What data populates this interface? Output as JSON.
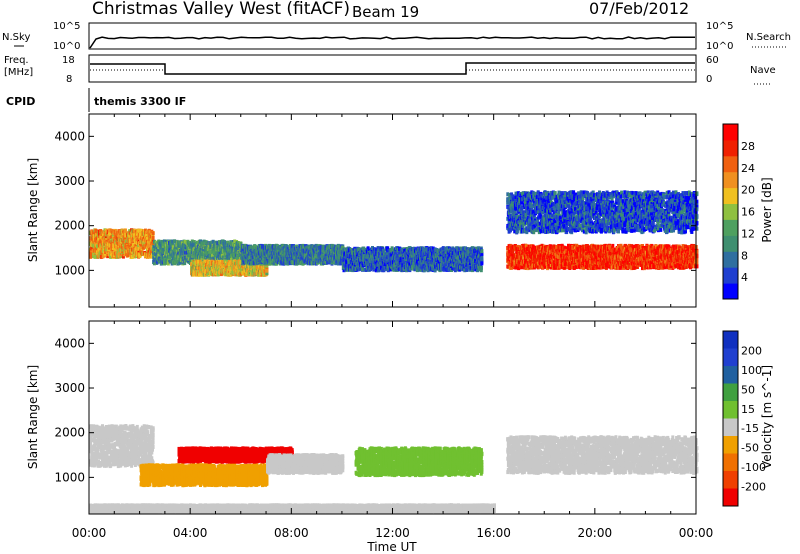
{
  "header": {
    "station": "Christmas Valley West (fitACF)",
    "beam": "Beam 19",
    "date": "07/Feb/2012",
    "cpid": "themis 3300 IF"
  },
  "panels": {
    "nsky_label": "N.Sky",
    "nsearch_label": "N.Search",
    "freq_label_1": "Freq.",
    "freq_label_2": "[MHz]",
    "nave_label": "Nave",
    "cpid_label": "CPID",
    "nsky_ticks": [
      "10^5",
      "10^0"
    ],
    "nsearch_ticks": [
      "10^5",
      "10^0"
    ],
    "freq_ticks": [
      "18",
      "8"
    ],
    "nave_ticks": [
      "60",
      "0"
    ]
  },
  "colors": {
    "power_scale": [
      "#0000ff",
      "#1f3fd0",
      "#2f6fa0",
      "#3f8f70",
      "#4fa060",
      "#8fc040",
      "#f0c020",
      "#f09020",
      "#f06010",
      "#f02000",
      "#ff0000"
    ],
    "velocity_scale": [
      "#1030c0",
      "#2040d0",
      "#2060a0",
      "#40a040",
      "#70c030",
      "#c8c8c8",
      "#f0a000",
      "#f07000",
      "#f04000",
      "#f00000"
    ],
    "ground_scatter": "#c8c8c8"
  },
  "chart_data": [
    {
      "type": "heatmap",
      "title": "",
      "xlabel": "Time UT",
      "ylabel": "Slant Range [km]",
      "x_ticks": [
        "00:00",
        "04:00",
        "08:00",
        "12:00",
        "16:00",
        "20:00",
        "00:00"
      ],
      "xlim_hours": [
        0,
        24
      ],
      "y_ticks": [
        "1000",
        "2000",
        "3000",
        "4000"
      ],
      "ylim": [
        180,
        4500
      ],
      "colorbar": {
        "label": "Power [dB]",
        "ticks": [
          "4",
          "8",
          "12",
          "16",
          "20",
          "24",
          "28"
        ],
        "range": [
          0,
          30
        ]
      },
      "regions": [
        {
          "t0": 0.0,
          "t1": 2.5,
          "r_center": 1600,
          "r_width": 600,
          "value": 20
        },
        {
          "t0": 2.5,
          "t1": 6.0,
          "r_center": 1400,
          "r_width": 500,
          "value": 10
        },
        {
          "t0": 4.0,
          "t1": 7.0,
          "r_center": 1050,
          "r_width": 300,
          "value": 18
        },
        {
          "t0": 6.0,
          "t1": 10.0,
          "r_center": 1350,
          "r_width": 400,
          "value": 8
        },
        {
          "t0": 10.0,
          "t1": 15.5,
          "r_center": 1250,
          "r_width": 500,
          "value": 6
        },
        {
          "t0": 16.5,
          "t1": 24.0,
          "r_center": 1300,
          "r_width": 500,
          "value": 26
        },
        {
          "t0": 16.5,
          "t1": 24.0,
          "r_center": 2300,
          "r_width": 900,
          "value": 5
        }
      ]
    },
    {
      "type": "heatmap",
      "title": "",
      "xlabel": "Time UT",
      "ylabel": "Slant Range [km]",
      "x_ticks": [
        "00:00",
        "04:00",
        "08:00",
        "12:00",
        "16:00",
        "20:00",
        "00:00"
      ],
      "xlim_hours": [
        0,
        24
      ],
      "y_ticks": [
        "1000",
        "2000",
        "3000",
        "4000"
      ],
      "ylim": [
        180,
        4500
      ],
      "colorbar": {
        "label": "Velocity [m s^-1]",
        "ticks": [
          "200",
          "100",
          "50",
          "15",
          "-15",
          "-50",
          "-100",
          "-200"
        ],
        "range": [
          -250,
          250
        ]
      },
      "regions": [
        {
          "t0": 0.0,
          "t1": 2.5,
          "r_center": 1700,
          "r_width": 900,
          "value": 0,
          "ground": true
        },
        {
          "t0": 2.0,
          "t1": 7.0,
          "r_center": 1050,
          "r_width": 450,
          "value": -60
        },
        {
          "t0": 3.5,
          "t1": 8.0,
          "r_center": 1500,
          "r_width": 300,
          "value": -220
        },
        {
          "t0": 7.0,
          "t1": 10.0,
          "r_center": 1300,
          "r_width": 400,
          "value": 0,
          "ground": true
        },
        {
          "t0": 10.5,
          "t1": 15.5,
          "r_center": 1350,
          "r_width": 600,
          "value": 40
        },
        {
          "t0": 16.5,
          "t1": 24.0,
          "r_center": 1500,
          "r_width": 800,
          "value": 0,
          "ground": true
        },
        {
          "t0": 0.0,
          "t1": 16.0,
          "r_center": 300,
          "r_width": 150,
          "value": -40
        }
      ]
    }
  ]
}
